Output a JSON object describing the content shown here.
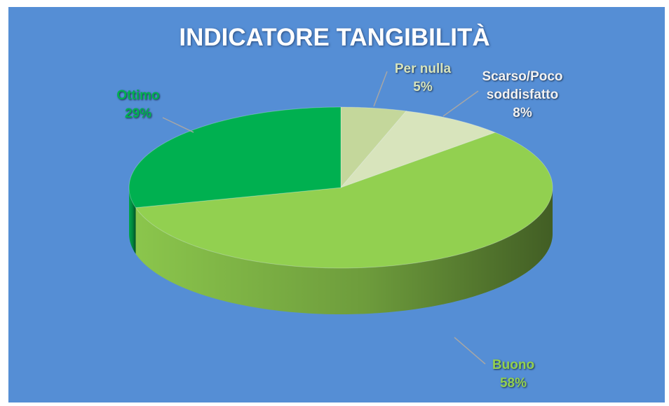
{
  "chart_data": {
    "type": "pie",
    "title": "INDICATORE TANGIBILITÀ",
    "categories": [
      "Per nulla",
      "Scarso/Poco soddisfatto",
      "Buono",
      "Ottimo"
    ],
    "values": [
      5,
      8,
      58,
      29
    ],
    "value_labels": [
      "5%",
      "8%",
      "58%",
      "29%"
    ],
    "colors": [
      "#c4d79b",
      "#d8e4bc",
      "#92d050",
      "#00b050"
    ],
    "label_colors": [
      "#d7e4bd",
      "#f2f2f2",
      "#92d050",
      "#00b050"
    ]
  }
}
